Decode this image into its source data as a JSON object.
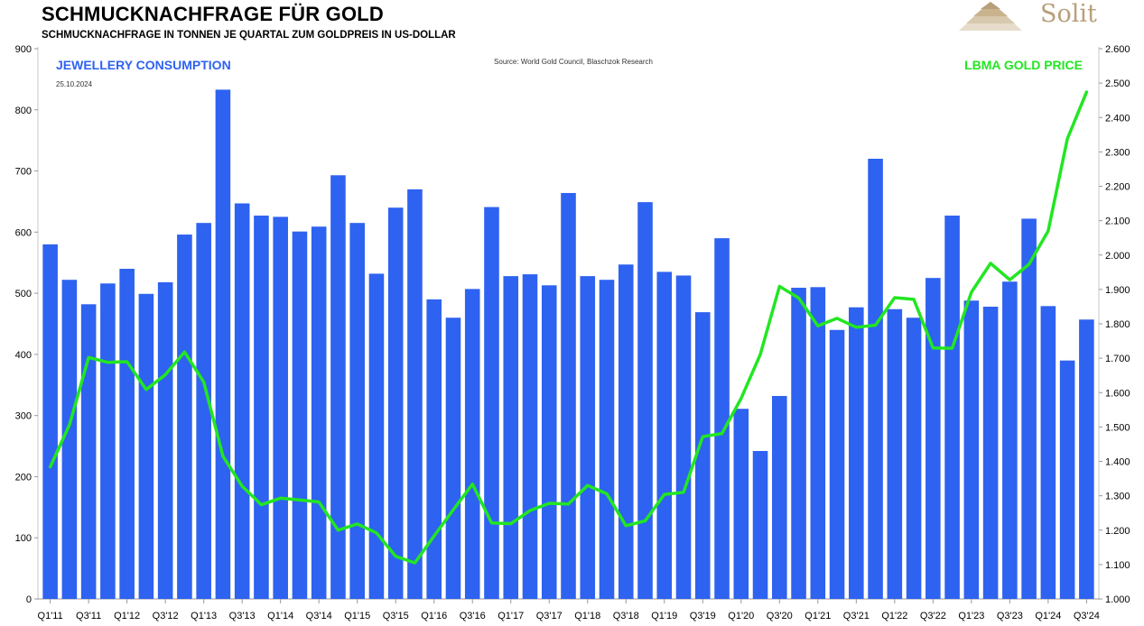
{
  "header": {
    "title": "SCHMUCKNACHFRAGE FÜR GOLD",
    "subtitle": "SCHMUCKNACHFRAGE IN TONNEN JE QUARTAL ZUM GOLDPREIS IN US-DOLLAR",
    "logo_text": "Solit"
  },
  "chart_data": {
    "type": "bar",
    "title": "SCHMUCKNACHFRAGE FÜR GOLD",
    "series_labels": {
      "left": "JEWELLERY CONSUMPTION",
      "right": "LBMA GOLD PRICE"
    },
    "date": "25.10.2024",
    "source": "Source:  World  Gold Council,  Blaschzok  Research",
    "colors": {
      "bars": "#2e62f0",
      "line": "#22e622"
    },
    "y_left": {
      "min": 0,
      "max": 900,
      "ticks": [
        "0",
        "100",
        "200",
        "300",
        "400",
        "500",
        "600",
        "700",
        "800",
        "900"
      ]
    },
    "y_right": {
      "min": 1000,
      "max": 2600,
      "ticks": [
        "1.000",
        "1.100",
        "1.200",
        "1.300",
        "1.400",
        "1.500",
        "1.600",
        "1.700",
        "1.800",
        "1.900",
        "2.000",
        "2.100",
        "2.200",
        "2.300",
        "2.400",
        "2.500",
        "2.600"
      ]
    },
    "x_tick_labels": [
      "Q1'11",
      "Q3'11",
      "Q1'12",
      "Q3'12",
      "Q1'13",
      "Q3'13",
      "Q1'14",
      "Q3'14",
      "Q1'15",
      "Q3'15",
      "Q1'16",
      "Q3'16",
      "Q1'17",
      "Q3'17",
      "Q1'18",
      "Q3'18",
      "Q1'19",
      "Q3'19",
      "Q1'20",
      "Q3'20",
      "Q1'21",
      "Q3'21",
      "Q1'22",
      "Q3'22",
      "Q1'23",
      "Q3'23",
      "Q1'24",
      "Q3'24"
    ],
    "categories": [
      "Q1'11",
      "Q2'11",
      "Q3'11",
      "Q4'11",
      "Q1'12",
      "Q2'12",
      "Q3'12",
      "Q4'12",
      "Q1'13",
      "Q2'13",
      "Q3'13",
      "Q4'13",
      "Q1'14",
      "Q2'14",
      "Q3'14",
      "Q4'14",
      "Q1'15",
      "Q2'15",
      "Q3'15",
      "Q4'15",
      "Q1'16",
      "Q2'16",
      "Q3'16",
      "Q4'16",
      "Q1'17",
      "Q2'17",
      "Q3'17",
      "Q4'17",
      "Q1'18",
      "Q2'18",
      "Q3'18",
      "Q4'18",
      "Q1'19",
      "Q2'19",
      "Q3'19",
      "Q4'19",
      "Q1'20",
      "Q2'20",
      "Q3'20",
      "Q4'20",
      "Q1'21",
      "Q2'21",
      "Q3'21",
      "Q4'21",
      "Q1'22",
      "Q2'22",
      "Q3'22",
      "Q4'22",
      "Q1'23",
      "Q2'23",
      "Q3'23",
      "Q4'23",
      "Q1'24",
      "Q2'24",
      "Q3'24"
    ],
    "series": [
      {
        "name": "JEWELLERY CONSUMPTION",
        "axis": "left",
        "values": [
          580,
          522,
          482,
          516,
          540,
          499,
          518,
          596,
          615,
          833,
          647,
          627,
          625,
          601,
          609,
          693,
          615,
          532,
          640,
          670,
          490,
          460,
          507,
          641,
          528,
          531,
          513,
          664,
          528,
          522,
          547,
          649,
          535,
          529,
          469,
          590,
          311,
          242,
          332,
          509,
          510,
          440,
          477,
          720,
          474,
          460,
          525,
          627,
          488,
          478,
          519,
          622,
          479,
          390,
          457
        ]
      },
      {
        "name": "LBMA GOLD PRICE",
        "axis": "right",
        "values": [
          1384,
          1506,
          1702,
          1688,
          1690,
          1609,
          1652,
          1718,
          1631,
          1415,
          1328,
          1274,
          1293,
          1288,
          1282,
          1200,
          1218,
          1192,
          1124,
          1105,
          1183,
          1259,
          1334,
          1221,
          1219,
          1257,
          1278,
          1276,
          1330,
          1306,
          1213,
          1227,
          1304,
          1310,
          1472,
          1481,
          1583,
          1711,
          1909,
          1875,
          1794,
          1816,
          1790,
          1796,
          1876,
          1871,
          1730,
          1729,
          1892,
          1976,
          1928,
          1973,
          2070,
          2338,
          2474
        ]
      }
    ]
  }
}
